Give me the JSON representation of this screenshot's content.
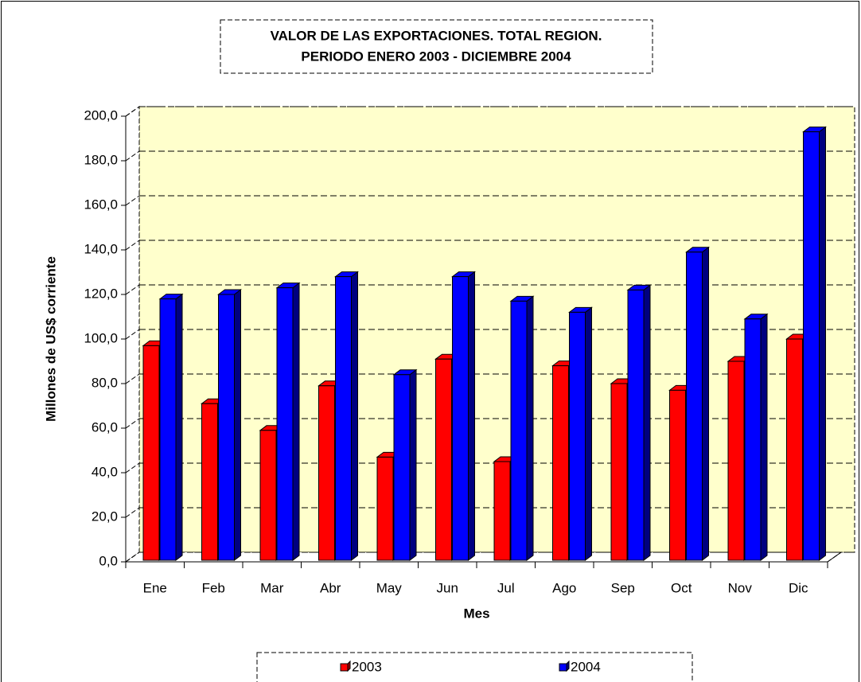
{
  "chart_data": {
    "type": "bar3d",
    "title": "VALOR DE LAS EXPORTACIONES. TOTAL REGION.",
    "subtitle": "PERIODO ENERO 2003 - DICIEMBRE 2004",
    "x_label": "Mes",
    "y_label": "Millones de US$ corriente",
    "categories": [
      "Ene",
      "Feb",
      "Mar",
      "Abr",
      "May",
      "Jun",
      "Jul",
      "Ago",
      "Sep",
      "Oct",
      "Nov",
      "Dic"
    ],
    "series": [
      {
        "name": "2003",
        "color": "#ff0000",
        "side_color": "#990000",
        "values": [
          97,
          71,
          59,
          79,
          47,
          91,
          45,
          88,
          80,
          77,
          90,
          100
        ]
      },
      {
        "name": "2004",
        "color": "#0000ff",
        "side_color": "#000080",
        "values": [
          118,
          120,
          123,
          128,
          84,
          128,
          117,
          112,
          122,
          139,
          109,
          193
        ]
      }
    ],
    "ylim": [
      0,
      200
    ],
    "yticks": [
      {
        "value": 0,
        "label": "0,0"
      },
      {
        "value": 20,
        "label": "20,0"
      },
      {
        "value": 40,
        "label": "40,0"
      },
      {
        "value": 60,
        "label": "60,0"
      },
      {
        "value": 80,
        "label": "80,0"
      },
      {
        "value": 100,
        "label": "100,0"
      },
      {
        "value": 120,
        "label": "120,0"
      },
      {
        "value": 140,
        "label": "140,0"
      },
      {
        "value": 160,
        "label": "160,0"
      },
      {
        "value": 180,
        "label": "180,0"
      },
      {
        "value": 200,
        "label": "200,0"
      }
    ],
    "grid": true,
    "wall_color": "#ffffcc",
    "legend": "bottom"
  }
}
